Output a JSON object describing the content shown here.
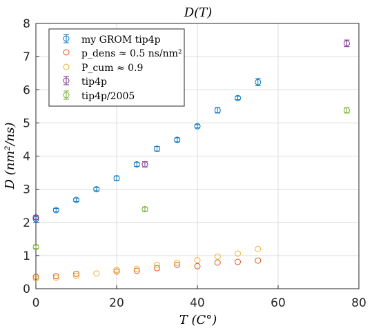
{
  "colors": {
    "blue": "#0072BD",
    "orange": "#D95319",
    "yellow": "#EDB120",
    "purple": "#7E2F8E",
    "green": "#77AC30",
    "grid": "#dcdcdc",
    "axis": "#262626"
  },
  "chart_data": {
    "type": "scatter",
    "title": "D(T)",
    "xlabel": "T (C°)",
    "ylabel": "D (nm²/ns)",
    "xlim": [
      0,
      80
    ],
    "ylim": [
      0,
      8
    ],
    "xticks": [
      0,
      20,
      40,
      60,
      80
    ],
    "yticks": [
      0,
      1,
      2,
      3,
      4,
      5,
      6,
      7,
      8
    ],
    "grid": true,
    "legend_position": "top-left",
    "series": [
      {
        "name": "my GROM tip4p",
        "color": "blue",
        "errorbars": true,
        "points": [
          {
            "x": 0,
            "y": 2.1,
            "err": 0.1
          },
          {
            "x": 5,
            "y": 2.37,
            "err": 0.05
          },
          {
            "x": 10,
            "y": 2.68,
            "err": 0.05
          },
          {
            "x": 15,
            "y": 3.0,
            "err": 0.05
          },
          {
            "x": 20,
            "y": 3.33,
            "err": 0.07
          },
          {
            "x": 25,
            "y": 3.75,
            "err": 0.06
          },
          {
            "x": 30,
            "y": 4.22,
            "err": 0.07
          },
          {
            "x": 35,
            "y": 4.49,
            "err": 0.06
          },
          {
            "x": 40,
            "y": 4.9,
            "err": 0.05
          },
          {
            "x": 45,
            "y": 5.38,
            "err": 0.08
          },
          {
            "x": 50,
            "y": 5.75,
            "err": 0.05
          },
          {
            "x": 55,
            "y": 6.23,
            "err": 0.11
          }
        ]
      },
      {
        "name": "p_dens ≈ 0.5 ns/nm²",
        "color": "orange",
        "errorbars": false,
        "points": [
          {
            "x": 0,
            "y": 0.36
          },
          {
            "x": 5,
            "y": 0.38
          },
          {
            "x": 10,
            "y": 0.45
          },
          {
            "x": 20,
            "y": 0.52
          },
          {
            "x": 25,
            "y": 0.54
          },
          {
            "x": 30,
            "y": 0.62
          },
          {
            "x": 35,
            "y": 0.72
          },
          {
            "x": 40,
            "y": 0.68
          },
          {
            "x": 45,
            "y": 0.79
          },
          {
            "x": 50,
            "y": 0.81
          },
          {
            "x": 55,
            "y": 0.85
          }
        ]
      },
      {
        "name": "P_cum ≈ 0.9",
        "color": "yellow",
        "errorbars": false,
        "points": [
          {
            "x": 0,
            "y": 0.31
          },
          {
            "x": 5,
            "y": 0.33
          },
          {
            "x": 10,
            "y": 0.39
          },
          {
            "x": 15,
            "y": 0.46
          },
          {
            "x": 20,
            "y": 0.57
          },
          {
            "x": 25,
            "y": 0.6
          },
          {
            "x": 30,
            "y": 0.72
          },
          {
            "x": 35,
            "y": 0.78
          },
          {
            "x": 40,
            "y": 0.86
          },
          {
            "x": 45,
            "y": 0.97
          },
          {
            "x": 50,
            "y": 1.06
          },
          {
            "x": 55,
            "y": 1.2
          }
        ]
      },
      {
        "name": "tip4p",
        "color": "purple",
        "errorbars": true,
        "points": [
          {
            "x": 0,
            "y": 2.15,
            "err": 0.05
          },
          {
            "x": 27,
            "y": 3.75,
            "err": 0.08
          },
          {
            "x": 77,
            "y": 7.4,
            "err": 0.1
          }
        ]
      },
      {
        "name": "tip4p/2005",
        "color": "green",
        "errorbars": true,
        "points": [
          {
            "x": 0,
            "y": 1.26,
            "err": 0.05
          },
          {
            "x": 27,
            "y": 2.4,
            "err": 0.06
          },
          {
            "x": 77,
            "y": 5.38,
            "err": 0.08
          }
        ]
      }
    ]
  }
}
